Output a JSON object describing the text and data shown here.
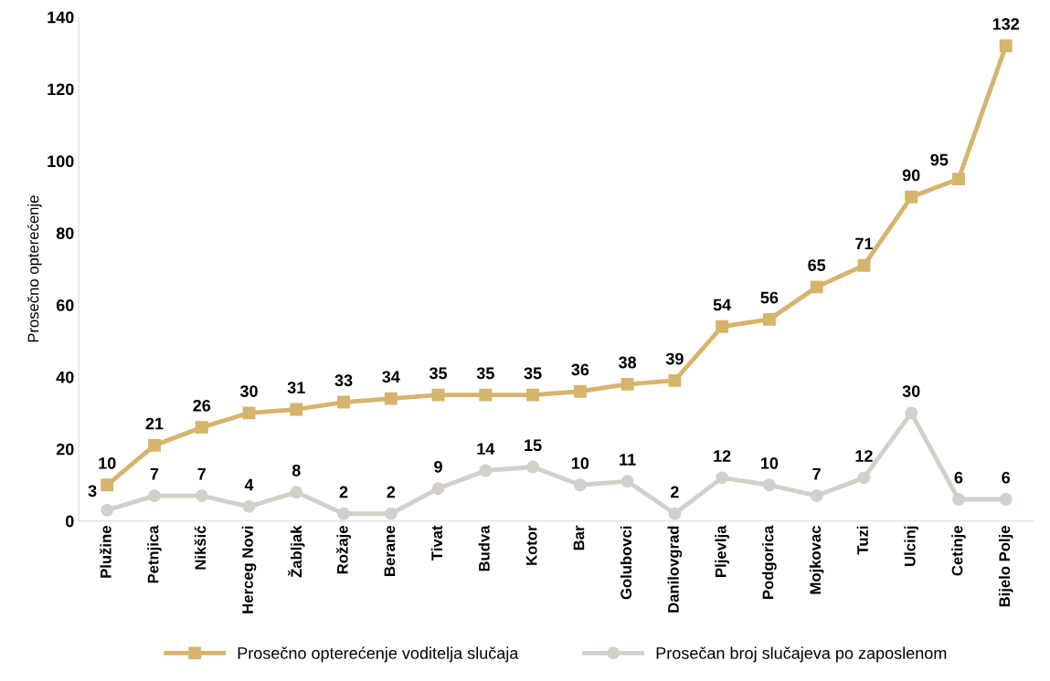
{
  "chart_data": {
    "type": "line",
    "ylabel": "Prosečno opterećenje",
    "categories": [
      "Plužine",
      "Petnjica",
      "Nikšić",
      "Herceg Novi",
      "Žabljak",
      "Rožaje",
      "Berane",
      "Tivat",
      "Budva",
      "Kotor",
      "Bar",
      "Golubovci",
      "Danilovgrad",
      "Pljevlja",
      "Podgorica",
      "Mojkovac",
      "Tuzi",
      "Ulcinj",
      "Cetinje",
      "Bijelo Polje"
    ],
    "series": [
      {
        "name": "Prosečno opterećenje voditelja slučaja",
        "color": "#d6b46c",
        "marker": "square",
        "values": [
          10,
          21,
          26,
          30,
          31,
          33,
          34,
          35,
          35,
          35,
          36,
          38,
          39,
          54,
          56,
          65,
          71,
          90,
          95,
          132
        ]
      },
      {
        "name": "Prosečan broj slučajeva po zaposlenom",
        "color": "#d3d0c9",
        "marker": "circle",
        "values": [
          3,
          7,
          7,
          4,
          8,
          2,
          2,
          9,
          14,
          15,
          10,
          11,
          2,
          12,
          10,
          7,
          12,
          30,
          6,
          6
        ]
      }
    ],
    "ylim": [
      0,
      140
    ],
    "yticks": [
      0,
      20,
      40,
      60,
      80,
      100,
      120,
      140
    ],
    "grid": false,
    "legend": "bottom",
    "data_labels": true,
    "line_style": "solid"
  }
}
